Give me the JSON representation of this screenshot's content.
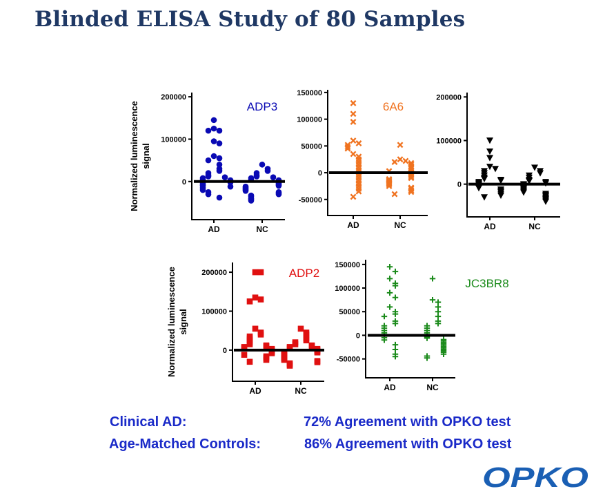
{
  "slide": {
    "title": "Blinded ELISA Study of 80 Samples",
    "y_axis_label_line1": "Normalized luminescence",
    "y_axis_label_line2": "signal"
  },
  "summary": [
    {
      "label": "Clinical AD:",
      "value": "72% Agreement with OPKO test"
    },
    {
      "label": "Age-Matched Controls:",
      "value": "86% Agreement with OPKO test"
    }
  ],
  "logo": {
    "text": "OPKO",
    "color": "#1a5fb4"
  },
  "chart_data": [
    {
      "type": "scatter",
      "title": "ADP3",
      "marker": "circle",
      "color": "#0a0ab4",
      "categories": [
        "AD",
        "NC"
      ],
      "ylim": [
        -90000,
        210000
      ],
      "ticks": [
        {
          "value": 0,
          "label": "0"
        },
        {
          "value": 100000,
          "label": "100000"
        },
        {
          "value": 200000,
          "label": "200000"
        }
      ],
      "mean_line": 0,
      "series": [
        {
          "category": "AD",
          "values": [
            145000,
            125000,
            120000,
            120000,
            95000,
            90000,
            60000,
            55000,
            50000,
            40000,
            30000,
            25000,
            20000,
            15000,
            12000,
            10000,
            8000,
            5000,
            3000,
            0,
            -2000,
            -5000,
            -8000,
            -10000,
            -12000,
            -15000,
            -20000,
            -25000,
            -30000,
            -38000
          ]
        },
        {
          "category": "NC",
          "values": [
            40000,
            30000,
            25000,
            20000,
            15000,
            12000,
            10000,
            8000,
            5000,
            3000,
            0,
            -2000,
            -4000,
            -6000,
            -8000,
            -10000,
            -12000,
            -14000,
            -16000,
            -18000,
            -20000,
            -22000,
            -25000,
            -28000,
            -30000,
            -33000,
            -36000,
            -40000,
            -42000,
            -45000
          ]
        }
      ]
    },
    {
      "type": "scatter",
      "title": "6A6",
      "marker": "x",
      "color": "#f07320",
      "categories": [
        "AD",
        "NC"
      ],
      "ylim": [
        -80000,
        155000
      ],
      "ticks": [
        {
          "value": -50000,
          "label": "-50000"
        },
        {
          "value": 0,
          "label": "0"
        },
        {
          "value": 50000,
          "label": "50000"
        },
        {
          "value": 100000,
          "label": "100000"
        },
        {
          "value": 150000,
          "label": "150000"
        }
      ],
      "mean_line": 0,
      "series": [
        {
          "category": "AD",
          "values": [
            130000,
            110000,
            95000,
            60000,
            55000,
            52000,
            48000,
            45000,
            35000,
            30000,
            25000,
            20000,
            15000,
            10000,
            5000,
            0,
            -5000,
            -10000,
            -15000,
            -20000,
            -25000,
            -30000,
            -35000,
            -45000
          ]
        },
        {
          "category": "NC",
          "values": [
            52000,
            25000,
            22000,
            20000,
            18000,
            15000,
            12000,
            10000,
            8000,
            5000,
            3000,
            0,
            -3000,
            -5000,
            -8000,
            -10000,
            -12000,
            -14000,
            -16000,
            -18000,
            -20000,
            -22000,
            -25000,
            -28000,
            -30000,
            -33000,
            -36000,
            -40000
          ]
        }
      ]
    },
    {
      "type": "scatter",
      "title": "",
      "marker": "triangle-down",
      "color": "#000000",
      "categories": [
        "AD",
        "NC"
      ],
      "ylim": [
        -75000,
        210000
      ],
      "ticks": [
        {
          "value": 0,
          "label": "0"
        },
        {
          "value": 100000,
          "label": "100000"
        },
        {
          "value": 200000,
          "label": "200000"
        }
      ],
      "mean_line": 0,
      "series": [
        {
          "category": "AD",
          "values": [
            100000,
            75000,
            60000,
            40000,
            35000,
            30000,
            25000,
            20000,
            15000,
            12000,
            10000,
            8000,
            5000,
            2000,
            0,
            -3000,
            -6000,
            -9000,
            -12000,
            -15000,
            -18000,
            -22000,
            -26000,
            -30000
          ]
        },
        {
          "category": "NC",
          "values": [
            38000,
            30000,
            25000,
            20000,
            15000,
            10000,
            7000,
            5000,
            2000,
            0,
            -2000,
            -5000,
            -8000,
            -10000,
            -13000,
            -16000,
            -19000,
            -22000,
            -25000,
            -28000,
            -31000,
            -34000,
            -37000,
            -40000
          ]
        }
      ]
    },
    {
      "type": "scatter",
      "title": "ADP2",
      "marker": "square",
      "color": "#e01010",
      "categories": [
        "AD",
        "NC"
      ],
      "ylim": [
        -80000,
        225000
      ],
      "ticks": [
        {
          "value": 0,
          "label": "0"
        },
        {
          "value": 100000,
          "label": "100000"
        },
        {
          "value": 200000,
          "label": "200000"
        }
      ],
      "mean_line": 0,
      "series": [
        {
          "category": "AD",
          "values": [
            200000,
            200000,
            135000,
            130000,
            125000,
            55000,
            45000,
            40000,
            35000,
            30000,
            25000,
            20000,
            15000,
            12000,
            10000,
            8000,
            5000,
            3000,
            0,
            -2000,
            -5000,
            -8000,
            -12000,
            -16000,
            -20000,
            -25000,
            -30000
          ]
        },
        {
          "category": "NC",
          "values": [
            55000,
            45000,
            40000,
            30000,
            25000,
            20000,
            15000,
            12000,
            10000,
            8000,
            5000,
            3000,
            0,
            -2000,
            -4000,
            -6000,
            -8000,
            -10000,
            -12000,
            -14000,
            -16000,
            -18000,
            -20000,
            -22000,
            -25000,
            -28000,
            -31000,
            -34000,
            -37000,
            -40000
          ]
        }
      ]
    },
    {
      "type": "scatter",
      "title": "JC3BR8",
      "marker": "plus",
      "color": "#1a8a1a",
      "categories": [
        "AD",
        "NC"
      ],
      "ylim": [
        -90000,
        160000
      ],
      "ticks": [
        {
          "value": -50000,
          "label": "-50000"
        },
        {
          "value": 0,
          "label": "0"
        },
        {
          "value": 50000,
          "label": "50000"
        },
        {
          "value": 100000,
          "label": "100000"
        },
        {
          "value": 150000,
          "label": "150000"
        }
      ],
      "mean_line": 0,
      "series": [
        {
          "category": "AD",
          "values": [
            145000,
            135000,
            120000,
            110000,
            105000,
            90000,
            80000,
            60000,
            50000,
            45000,
            40000,
            30000,
            25000,
            20000,
            15000,
            10000,
            5000,
            0,
            -5000,
            -10000,
            -20000,
            -30000,
            -40000,
            -45000
          ]
        },
        {
          "category": "NC",
          "values": [
            120000,
            75000,
            70000,
            60000,
            50000,
            40000,
            30000,
            25000,
            20000,
            15000,
            10000,
            5000,
            0,
            -3000,
            -6000,
            -9000,
            -12000,
            -15000,
            -18000,
            -21000,
            -24000,
            -27000,
            -30000,
            -33000,
            -36000,
            -40000,
            -44000,
            -48000
          ]
        }
      ]
    }
  ]
}
